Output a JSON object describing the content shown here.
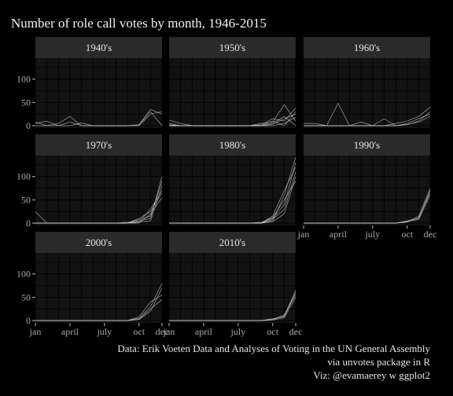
{
  "title": "Number of role call votes by month, 1946-2015",
  "caption": [
    "Data: Erik Voeten Data and Analyses of Voting in the UN General Assembly",
    "via unvotes package in R",
    "Viz: @evamaerey w ggplot2"
  ],
  "colors": {
    "background": "#000000",
    "panel": "#121212",
    "strip": "#2a2a2a",
    "grid": "#000000",
    "line": "#cfcfcf"
  },
  "chart_data": {
    "type": "line",
    "facet_by": "decade",
    "x_axis": {
      "ticks": [
        "jan",
        "april",
        "july",
        "oct",
        "dec"
      ],
      "tick_months": [
        1,
        4,
        7,
        10,
        12
      ],
      "xlim": [
        1,
        12
      ]
    },
    "y_axis": {
      "ticks": [
        "0",
        "50",
        "100"
      ],
      "tick_values": [
        0,
        50,
        100
      ],
      "ylim": [
        -5,
        145
      ]
    },
    "grid": true,
    "facets": [
      {
        "label": "1940's",
        "series": [
          {
            "values": [
              5,
              10,
              0,
              0,
              6,
              0,
              0,
              0,
              0,
              2,
              35,
              25
            ]
          },
          {
            "values": [
              0,
              0,
              5,
              20,
              0,
              0,
              0,
              0,
              0,
              0,
              25,
              30
            ]
          },
          {
            "values": [
              8,
              0,
              0,
              8,
              0,
              0,
              0,
              0,
              0,
              2,
              30,
              0
            ]
          }
        ]
      },
      {
        "label": "1950's",
        "series": [
          {
            "values": [
              12,
              5,
              0,
              0,
              0,
              0,
              0,
              0,
              5,
              8,
              45,
              10
            ]
          },
          {
            "values": [
              5,
              0,
              0,
              0,
              0,
              0,
              0,
              0,
              2,
              15,
              10,
              38
            ]
          },
          {
            "values": [
              0,
              0,
              0,
              0,
              0,
              0,
              0,
              0,
              0,
              5,
              20,
              0
            ]
          },
          {
            "values": [
              0,
              0,
              0,
              0,
              0,
              0,
              0,
              0,
              0,
              10,
              0,
              30
            ]
          },
          {
            "values": [
              0,
              0,
              0,
              0,
              0,
              0,
              0,
              0,
              0,
              0,
              5,
              18
            ]
          },
          {
            "values": [
              2,
              0,
              0,
              0,
              0,
              0,
              0,
              0,
              0,
              3,
              15,
              25
            ]
          }
        ]
      },
      {
        "label": "1960's",
        "series": [
          {
            "values": [
              5,
              5,
              0,
              0,
              0,
              0,
              0,
              0,
              5,
              10,
              20,
              40
            ]
          },
          {
            "values": [
              0,
              0,
              0,
              48,
              0,
              0,
              0,
              15,
              0,
              2,
              10,
              30
            ]
          },
          {
            "values": [
              0,
              0,
              0,
              0,
              0,
              8,
              0,
              0,
              0,
              5,
              15,
              25
            ]
          },
          {
            "values": [
              0,
              0,
              0,
              0,
              0,
              0,
              0,
              0,
              0,
              3,
              8,
              20
            ]
          }
        ]
      },
      {
        "label": "1970's",
        "series": [
          {
            "values": [
              25,
              0,
              0,
              0,
              0,
              0,
              0,
              0,
              0,
              5,
              10,
              100
            ]
          },
          {
            "values": [
              0,
              0,
              0,
              0,
              0,
              0,
              0,
              0,
              0,
              8,
              15,
              90
            ]
          },
          {
            "values": [
              0,
              0,
              0,
              0,
              0,
              0,
              0,
              0,
              2,
              3,
              30,
              70
            ]
          },
          {
            "values": [
              0,
              0,
              0,
              0,
              0,
              0,
              0,
              0,
              0,
              0,
              20,
              55
            ]
          },
          {
            "values": [
              0,
              0,
              0,
              0,
              0,
              0,
              0,
              0,
              0,
              2,
              5,
              80
            ]
          },
          {
            "values": [
              0,
              0,
              0,
              0,
              0,
              0,
              0,
              0,
              0,
              10,
              25,
              65
            ]
          }
        ]
      },
      {
        "label": "1980's",
        "series": [
          {
            "values": [
              0,
              0,
              0,
              0,
              0,
              0,
              0,
              0,
              0,
              5,
              60,
              142
            ]
          },
          {
            "values": [
              0,
              0,
              0,
              0,
              0,
              0,
              0,
              0,
              2,
              10,
              40,
              130
            ]
          },
          {
            "values": [
              0,
              0,
              0,
              0,
              0,
              0,
              0,
              0,
              0,
              15,
              70,
              120
            ]
          },
          {
            "values": [
              0,
              0,
              0,
              0,
              0,
              0,
              0,
              0,
              0,
              8,
              30,
              110
            ]
          },
          {
            "values": [
              0,
              0,
              0,
              0,
              0,
              0,
              0,
              0,
              0,
              3,
              20,
              100
            ]
          },
          {
            "values": [
              0,
              0,
              0,
              0,
              0,
              0,
              0,
              0,
              0,
              12,
              50,
              90
            ]
          }
        ]
      },
      {
        "label": "1990's",
        "series": [
          {
            "values": [
              0,
              0,
              0,
              0,
              0,
              0,
              0,
              0,
              0,
              3,
              15,
              75
            ]
          },
          {
            "values": [
              0,
              0,
              0,
              0,
              0,
              0,
              0,
              0,
              0,
              5,
              10,
              70
            ]
          },
          {
            "values": [
              0,
              0,
              0,
              0,
              0,
              0,
              0,
              0,
              0,
              2,
              12,
              65
            ]
          },
          {
            "values": [
              0,
              0,
              0,
              0,
              0,
              0,
              0,
              0,
              0,
              4,
              8,
              60
            ]
          }
        ]
      },
      {
        "label": "2000's",
        "series": [
          {
            "values": [
              0,
              0,
              0,
              0,
              0,
              0,
              0,
              0,
              0,
              5,
              30,
              80
            ]
          },
          {
            "values": [
              0,
              0,
              0,
              0,
              0,
              0,
              0,
              0,
              0,
              2,
              20,
              70
            ]
          },
          {
            "values": [
              0,
              0,
              0,
              0,
              0,
              0,
              0,
              0,
              0,
              8,
              40,
              55
            ]
          },
          {
            "values": [
              0,
              0,
              0,
              0,
              0,
              0,
              0,
              0,
              0,
              3,
              25,
              45
            ]
          }
        ]
      },
      {
        "label": "2010's",
        "series": [
          {
            "values": [
              0,
              0,
              0,
              0,
              0,
              0,
              0,
              0,
              0,
              2,
              10,
              65
            ]
          },
          {
            "values": [
              0,
              0,
              0,
              0,
              0,
              0,
              0,
              0,
              0,
              4,
              8,
              60
            ]
          },
          {
            "values": [
              0,
              0,
              0,
              0,
              0,
              0,
              0,
              0,
              0,
              3,
              12,
              55
            ]
          },
          {
            "values": [
              0,
              0,
              0,
              0,
              0,
              0,
              0,
              0,
              0,
              1,
              6,
              50
            ]
          }
        ]
      }
    ]
  }
}
